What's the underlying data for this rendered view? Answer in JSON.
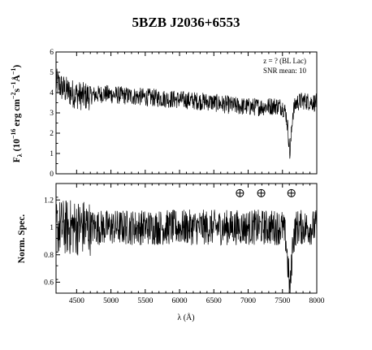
{
  "title": "5BZB J2036+6553",
  "chart_data": [
    {
      "type": "line",
      "panel": "top",
      "ylabel": "Fλ (10⁻¹⁶ erg cm⁻²s⁻¹Å⁻¹)",
      "xlim": [
        4200,
        8000
      ],
      "ylim": [
        0,
        6
      ],
      "yticks": [
        "0",
        "1",
        "2",
        "3",
        "4",
        "5",
        "6"
      ],
      "annotations": [
        "z = ? (BL Lac)",
        "SNR mean: 10"
      ],
      "series": [
        {
          "x": [
            4200,
            4300,
            4400,
            4500,
            4600,
            4700,
            4800,
            4900,
            5000,
            5200,
            5400,
            5600,
            5800,
            6000,
            6200,
            6400,
            6600,
            6800,
            7000,
            7200,
            7400,
            7500,
            7550,
            7580,
            7610,
            7630,
            7650,
            7700,
            7800,
            7900,
            8000
          ],
          "y": [
            4.5,
            4.2,
            4.0,
            3.9,
            3.8,
            3.85,
            3.9,
            3.95,
            3.9,
            3.85,
            3.8,
            3.75,
            3.7,
            3.65,
            3.6,
            3.55,
            3.45,
            3.35,
            3.3,
            3.3,
            3.35,
            3.3,
            3.0,
            2.2,
            0.9,
            2.0,
            3.0,
            3.5,
            3.6,
            3.55,
            3.5
          ],
          "noise": 0.45
        }
      ]
    },
    {
      "type": "line",
      "panel": "bottom",
      "ylabel": "Norm. Spec.",
      "xlabel": "λ (Å)",
      "xlim": [
        4200,
        8000
      ],
      "ylim": [
        0.52,
        1.32
      ],
      "xticks": [
        "4500",
        "5000",
        "5500",
        "6000",
        "6500",
        "7000",
        "7500",
        "8000"
      ],
      "yticks": [
        "0.6",
        "0.8",
        "1",
        "1.2"
      ],
      "telluric_markers_x": [
        6880,
        7190,
        7630
      ],
      "telluric_marker_y": 1.25,
      "series": [
        {
          "x": [
            4200,
            4400,
            4600,
            5000,
            5500,
            6000,
            6500,
            7000,
            7400,
            7500,
            7550,
            7580,
            7610,
            7630,
            7650,
            7700,
            7800,
            8000
          ],
          "y": [
            1.0,
            1.0,
            1.0,
            1.0,
            1.0,
            1.0,
            1.0,
            1.0,
            1.0,
            1.0,
            0.92,
            0.72,
            0.52,
            0.7,
            0.9,
            1.0,
            1.0,
            1.0
          ],
          "noise": 0.13
        }
      ]
    }
  ]
}
